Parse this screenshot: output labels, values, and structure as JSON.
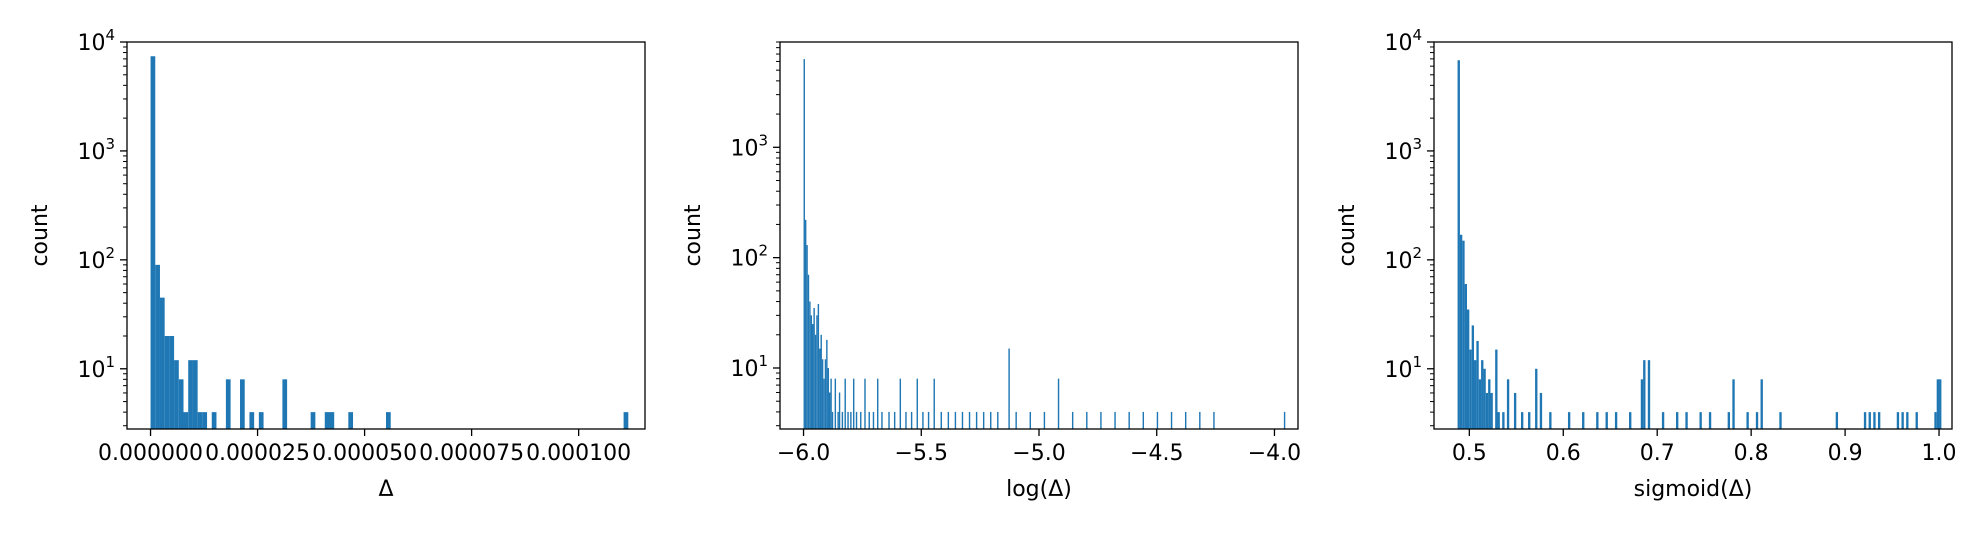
{
  "chart_data": [
    {
      "type": "bar",
      "xlabel": "Δ",
      "ylabel": "count",
      "yscale": "log",
      "xlim": [
        -5.5e-06,
        0.0001155
      ],
      "ylim": [
        2.8,
        10000
      ],
      "xticks": [
        0,
        2.5e-05,
        5e-05,
        7.5e-05,
        0.0001
      ],
      "xtick_labels": [
        "0.000000",
        "0.000025",
        "0.000050",
        "0.000075",
        "0.000100"
      ],
      "yticks": [
        {
          "value": 10,
          "base": "10",
          "exp": "1"
        },
        {
          "value": 100,
          "base": "10",
          "exp": "2"
        },
        {
          "value": 1000,
          "base": "10",
          "exp": "3"
        },
        {
          "value": 10000,
          "base": "10",
          "exp": "4"
        }
      ],
      "bin_width": 1.1e-06,
      "bins": [
        [
          0.0,
          7400
        ],
        [
          1.1e-06,
          90
        ],
        [
          2.2e-06,
          45
        ],
        [
          3.3e-06,
          20
        ],
        [
          4.4e-06,
          20
        ],
        [
          5.5e-06,
          12
        ],
        [
          6.6e-06,
          8
        ],
        [
          7.7e-06,
          4
        ],
        [
          8.8e-06,
          12
        ],
        [
          9.9e-06,
          12
        ],
        [
          1.1e-05,
          4
        ],
        [
          1.21e-05,
          4
        ],
        [
          1.43e-05,
          4
        ],
        [
          1.76e-05,
          8
        ],
        [
          2.09e-05,
          8
        ],
        [
          2.31e-05,
          4
        ],
        [
          2.53e-05,
          4
        ],
        [
          3.08e-05,
          8
        ],
        [
          3.74e-05,
          4
        ],
        [
          4.07e-05,
          4
        ],
        [
          4.18e-05,
          4
        ],
        [
          4.62e-05,
          4
        ],
        [
          5.5e-05,
          4
        ],
        [
          0.0001105,
          4
        ]
      ]
    },
    {
      "type": "bar",
      "xlabel": "log(Δ)",
      "ylabel": "count",
      "yscale": "log",
      "xlim": [
        -6.1,
        -3.9
      ],
      "ylim": [
        2.8,
        9000
      ],
      "xticks": [
        -6.0,
        -5.5,
        -5.0,
        -4.5,
        -4.0
      ],
      "xtick_labels": [
        "−6.0",
        "−5.5",
        "−5.0",
        "−4.5",
        "−4.0"
      ],
      "yticks": [
        {
          "value": 10,
          "base": "10",
          "exp": "1"
        },
        {
          "value": 100,
          "base": "10",
          "exp": "2"
        },
        {
          "value": 1000,
          "base": "10",
          "exp": "3"
        }
      ],
      "bin_width": 0.006,
      "bins": [
        [
          -6.0,
          6300
        ],
        [
          -5.994,
          220
        ],
        [
          -5.988,
          130
        ],
        [
          -5.982,
          70
        ],
        [
          -5.976,
          40
        ],
        [
          -5.97,
          30
        ],
        [
          -5.964,
          25
        ],
        [
          -5.958,
          35
        ],
        [
          -5.952,
          20
        ],
        [
          -5.946,
          30
        ],
        [
          -5.94,
          38
        ],
        [
          -5.934,
          15
        ],
        [
          -5.928,
          20
        ],
        [
          -5.922,
          12
        ],
        [
          -5.916,
          8
        ],
        [
          -5.91,
          12
        ],
        [
          -5.904,
          18
        ],
        [
          -5.898,
          10
        ],
        [
          -5.892,
          6
        ],
        [
          -5.886,
          8
        ],
        [
          -5.88,
          4
        ],
        [
          -5.868,
          8
        ],
        [
          -5.856,
          4
        ],
        [
          -5.85,
          6
        ],
        [
          -5.838,
          4
        ],
        [
          -5.826,
          8
        ],
        [
          -5.814,
          4
        ],
        [
          -5.802,
          4
        ],
        [
          -5.79,
          8
        ],
        [
          -5.778,
          4
        ],
        [
          -5.76,
          4
        ],
        [
          -5.742,
          8
        ],
        [
          -5.724,
          4
        ],
        [
          -5.706,
          4
        ],
        [
          -5.688,
          8
        ],
        [
          -5.67,
          4
        ],
        [
          -5.64,
          4
        ],
        [
          -5.616,
          4
        ],
        [
          -5.592,
          8
        ],
        [
          -5.568,
          4
        ],
        [
          -5.544,
          4
        ],
        [
          -5.52,
          8
        ],
        [
          -5.496,
          4
        ],
        [
          -5.472,
          4
        ],
        [
          -5.448,
          8
        ],
        [
          -5.418,
          4
        ],
        [
          -5.388,
          4
        ],
        [
          -5.358,
          4
        ],
        [
          -5.328,
          4
        ],
        [
          -5.298,
          4
        ],
        [
          -5.268,
          4
        ],
        [
          -5.238,
          4
        ],
        [
          -5.208,
          4
        ],
        [
          -5.178,
          4
        ],
        [
          -5.13,
          15
        ],
        [
          -5.1,
          4
        ],
        [
          -5.04,
          4
        ],
        [
          -4.98,
          4
        ],
        [
          -4.92,
          8
        ],
        [
          -4.86,
          4
        ],
        [
          -4.8,
          4
        ],
        [
          -4.74,
          4
        ],
        [
          -4.68,
          4
        ],
        [
          -4.62,
          4
        ],
        [
          -4.56,
          4
        ],
        [
          -4.5,
          4
        ],
        [
          -4.44,
          4
        ],
        [
          -4.38,
          4
        ],
        [
          -4.32,
          4
        ],
        [
          -4.26,
          4
        ],
        [
          -3.96,
          4
        ]
      ]
    },
    {
      "type": "bar",
      "xlabel": "sigmoid(Δ)",
      "ylabel": "count",
      "yscale": "log",
      "xlim": [
        0.4624,
        1.0138
      ],
      "ylim": [
        2.8,
        10000
      ],
      "xticks": [
        0.5,
        0.6,
        0.7,
        0.8,
        0.9,
        1.0
      ],
      "xtick_labels": [
        "0.5",
        "0.6",
        "0.7",
        "0.8",
        "0.9",
        "1.0"
      ],
      "yticks": [
        {
          "value": 10,
          "base": "10",
          "exp": "1"
        },
        {
          "value": 100,
          "base": "10",
          "exp": "2"
        },
        {
          "value": 1000,
          "base": "10",
          "exp": "3"
        },
        {
          "value": 10000,
          "base": "10",
          "exp": "4"
        }
      ],
      "bin_width": 0.0025,
      "bins": [
        [
          0.4875,
          6800
        ],
        [
          0.49,
          170
        ],
        [
          0.4925,
          150
        ],
        [
          0.495,
          60
        ],
        [
          0.4975,
          35
        ],
        [
          0.5,
          15
        ],
        [
          0.5025,
          25
        ],
        [
          0.505,
          12
        ],
        [
          0.5075,
          18
        ],
        [
          0.51,
          8
        ],
        [
          0.5125,
          12
        ],
        [
          0.515,
          10
        ],
        [
          0.5175,
          6
        ],
        [
          0.52,
          8
        ],
        [
          0.5225,
          6
        ],
        [
          0.5275,
          15
        ],
        [
          0.53,
          4
        ],
        [
          0.535,
          4
        ],
        [
          0.54,
          8
        ],
        [
          0.5475,
          6
        ],
        [
          0.555,
          4
        ],
        [
          0.5625,
          4
        ],
        [
          0.57,
          10
        ],
        [
          0.575,
          6
        ],
        [
          0.585,
          4
        ],
        [
          0.605,
          4
        ],
        [
          0.62,
          4
        ],
        [
          0.635,
          4
        ],
        [
          0.645,
          4
        ],
        [
          0.655,
          4
        ],
        [
          0.67,
          4
        ],
        [
          0.6825,
          8
        ],
        [
          0.685,
          12
        ],
        [
          0.69,
          12
        ],
        [
          0.705,
          4
        ],
        [
          0.72,
          4
        ],
        [
          0.73,
          4
        ],
        [
          0.745,
          4
        ],
        [
          0.755,
          4
        ],
        [
          0.775,
          4
        ],
        [
          0.78,
          8
        ],
        [
          0.795,
          4
        ],
        [
          0.805,
          4
        ],
        [
          0.81,
          8
        ],
        [
          0.83,
          4
        ],
        [
          0.89,
          4
        ],
        [
          0.92,
          4
        ],
        [
          0.925,
          4
        ],
        [
          0.93,
          4
        ],
        [
          0.935,
          4
        ],
        [
          0.955,
          4
        ],
        [
          0.96,
          4
        ],
        [
          0.965,
          4
        ],
        [
          0.975,
          4
        ],
        [
          0.995,
          4
        ],
        [
          0.9975,
          8
        ],
        [
          1.0,
          8
        ]
      ]
    }
  ]
}
